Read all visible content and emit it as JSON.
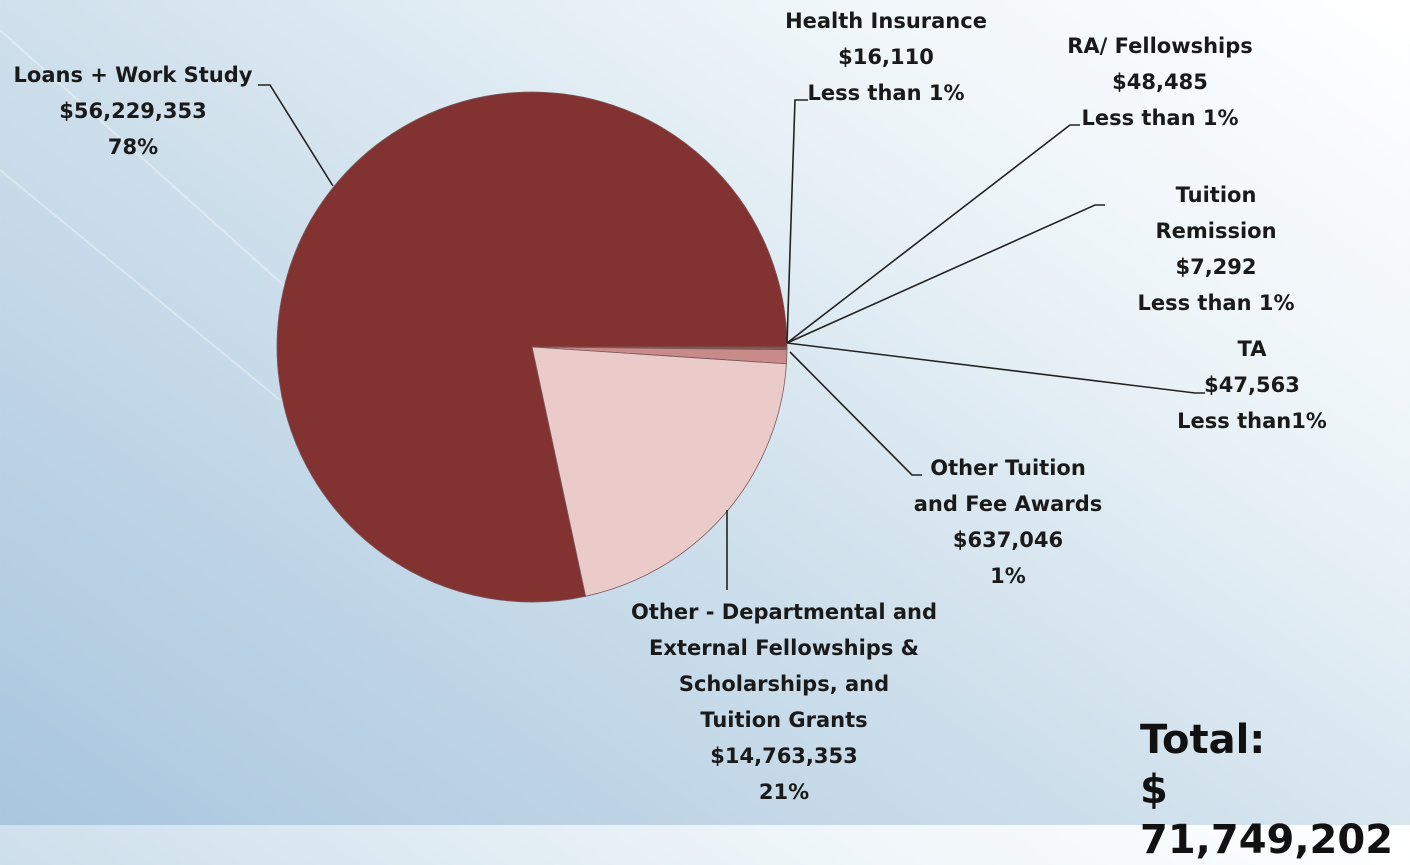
{
  "chart_data": {
    "type": "pie",
    "categories": [
      "Health Insurance",
      "RA/ Fellowships",
      "Tuition Remission",
      "TA",
      "Other Tuition\nand Fee Awards",
      "Other - Departmental and\nExternal Fellowships &\nScholarships, and\nTuition Grants",
      "Loans + Work Study"
    ],
    "values": [
      16110,
      48485,
      7292,
      47563,
      637046,
      14763353,
      56229353
    ],
    "value_labels": [
      "$16,110",
      "$48,485",
      "$7,292",
      "$47,563",
      "$637,046",
      "$14,763,353",
      "$56,229,353"
    ],
    "percent_labels": [
      "Less than 1%",
      "Less than 1%",
      "Less than 1%",
      "Less than1%",
      "1%",
      "21%",
      "78%"
    ],
    "colors": [
      "#b05a5a",
      "#9c4444",
      "#c07070",
      "#a85050",
      "#c98a8a",
      "#ebcaca",
      "#833232"
    ],
    "total_label": "Total:",
    "total_text": "$ 71,749,202"
  }
}
